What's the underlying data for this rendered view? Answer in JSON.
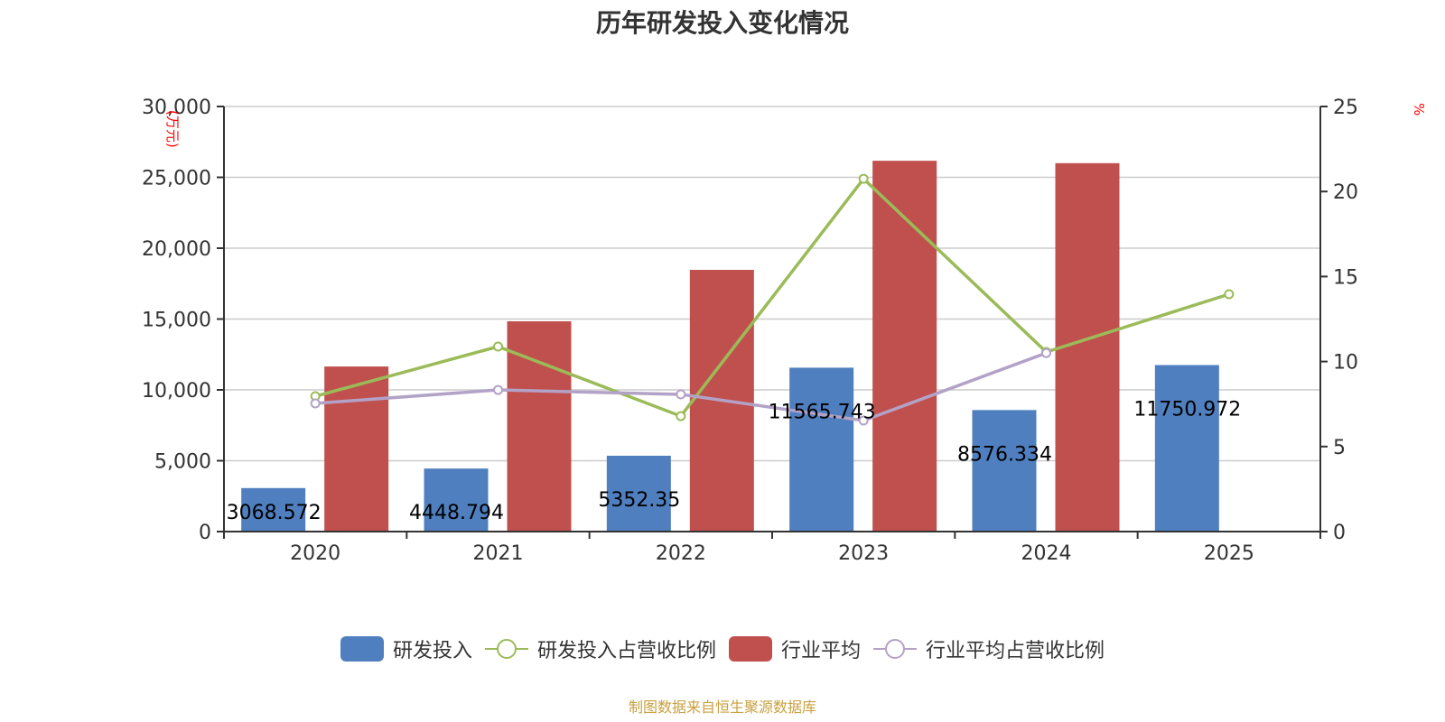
{
  "header": {
    "title": "历年研发投入变化情况"
  },
  "axes": {
    "left_unit": "(万元)",
    "right_unit": "%",
    "left_ticks": [
      "0",
      "5,000",
      "10,000",
      "15,000",
      "20,000",
      "25,000",
      "30,000"
    ],
    "right_ticks": [
      "0",
      "5",
      "10",
      "15",
      "20",
      "25"
    ],
    "x_ticks": [
      "2020",
      "2021",
      "2022",
      "2023",
      "2024",
      "2025"
    ]
  },
  "legend": {
    "items": [
      {
        "label": "研发投入",
        "type": "bar",
        "color": "#4f7fbf"
      },
      {
        "label": "研发投入占营收比例",
        "type": "line",
        "color": "#9bbb59"
      },
      {
        "label": "行业平均",
        "type": "bar",
        "color": "#c0504d"
      },
      {
        "label": "行业平均占营收比例",
        "type": "line",
        "color": "#b3a2c7"
      }
    ]
  },
  "footer": {
    "source": "制图数据来自恒生聚源数据库",
    "source_color": "#c8a040"
  },
  "colors": {
    "rd_bar": "#4f7fbf",
    "industry_bar": "#c0504d",
    "rd_ratio": "#9bbb59",
    "industry_ratio": "#b3a2c7",
    "grid": "#cccccc",
    "axis": "#333333"
  },
  "chart_data": {
    "type": "bar",
    "title": "历年研发投入变化情况",
    "xlabel": "",
    "ylabel": "万元",
    "y2label": "%",
    "ylim": [
      0,
      30000
    ],
    "y2lim": [
      0,
      25
    ],
    "grid": true,
    "legend_position": "bottom",
    "categories": [
      "2020",
      "2021",
      "2022",
      "2023",
      "2024",
      "2025"
    ],
    "series": [
      {
        "name": "研发投入",
        "type": "bar",
        "axis": "left",
        "values": [
          3068.572,
          4448.794,
          5352.35,
          11565.743,
          8576.334,
          11750.972
        ],
        "labels": [
          "3068.572",
          "4448.794",
          "5352.35",
          "11565.743",
          "8576.334",
          "11750.972"
        ]
      },
      {
        "name": "行业平均",
        "type": "bar",
        "axis": "left",
        "values": [
          11650,
          14840,
          18470,
          26170,
          26000,
          null
        ]
      },
      {
        "name": "研发投入占营收比例",
        "type": "line",
        "axis": "right",
        "values": [
          7.96,
          10.88,
          6.79,
          20.75,
          10.56,
          13.96
        ]
      },
      {
        "name": "行业平均占营收比例",
        "type": "line",
        "axis": "right",
        "values": [
          7.54,
          8.33,
          8.07,
          6.53,
          10.5,
          null
        ]
      }
    ]
  }
}
